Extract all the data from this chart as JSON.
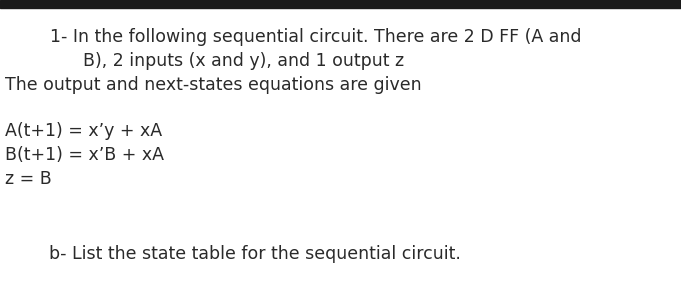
{
  "background_color": "#ffffff",
  "top_bar_color": "#1a1a1a",
  "fig_width": 6.81,
  "fig_height": 3.07,
  "dpi": 100,
  "line1": "1- In the following sequential circuit. There are 2 D FF (A and",
  "line2": "      B), 2 inputs (x and y), and 1 output z",
  "line3": "The output and next-states equations are given",
  "line4": "A(t+1) = x’y + xA",
  "line5": "B(t+1) = x’B + xA",
  "line6": "z = B",
  "line7": "        b- List the state table for the sequential circuit.",
  "font_size": 12.5,
  "text_color": "#2a2a2a",
  "font_family": "DejaVu Sans"
}
